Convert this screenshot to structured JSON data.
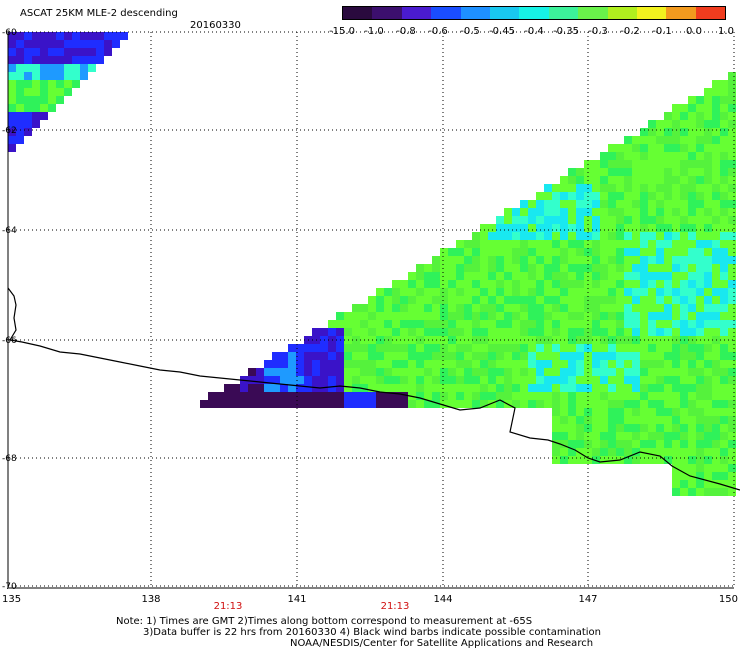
{
  "header": {
    "title": "ASCAT 25KM MLE-2 descending",
    "date": "20160330"
  },
  "colorbar": {
    "labels": [
      "-15.0",
      "-1.0",
      "-0.8",
      "-0.6",
      "-0.5",
      "-0.45",
      "-0.4",
      "-0.35",
      "-0.3",
      "-0.2",
      "-0.1",
      "0.0",
      "1.0"
    ],
    "colors": [
      "#2a0a3e",
      "#3c0f6e",
      "#4a1bd0",
      "#1a4dff",
      "#1e90ff",
      "#19c8f0",
      "#16f3e6",
      "#3cf29a",
      "#69f24a",
      "#b0ef1e",
      "#f2f21e",
      "#f29a1e",
      "#f03c1e"
    ]
  },
  "map": {
    "lat_labels": [
      "-60",
      "-62",
      "-64",
      "-66",
      "-68",
      "-70"
    ],
    "lon_labels": [
      "135",
      "138",
      "141",
      "144",
      "147",
      "150"
    ],
    "time_labels": [
      "21:13",
      "21:13"
    ],
    "time_color": "#d01010"
  },
  "notes": {
    "line1": "Note: 1) Times are GMT 2)Times along bottom correspond to measurement at -65S",
    "line2": "3)Data buffer is 22 hrs from 20160330 4) Black wind barbs indicate possible contamination",
    "line3": "NOAA/NESDIS/Center for Satellite Applications and Research"
  }
}
